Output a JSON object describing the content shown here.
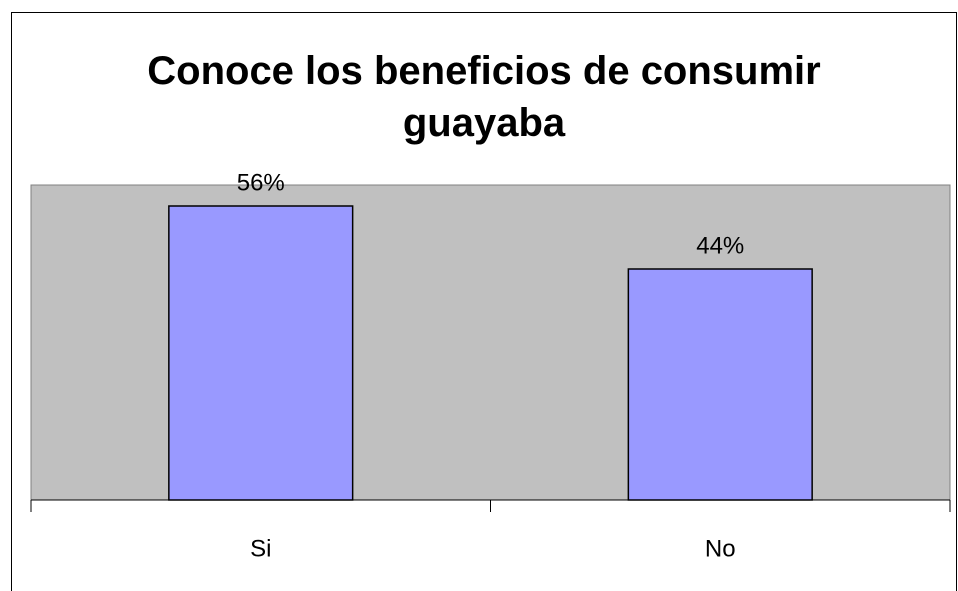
{
  "chart_data": {
    "type": "bar",
    "title": "Conoce los beneficios de consumir guayaba",
    "categories": [
      "Si",
      "No"
    ],
    "values": [
      56,
      44
    ],
    "value_labels": [
      "56%",
      "44%"
    ],
    "color": "#9999ff",
    "ylim": [
      0,
      60
    ]
  }
}
